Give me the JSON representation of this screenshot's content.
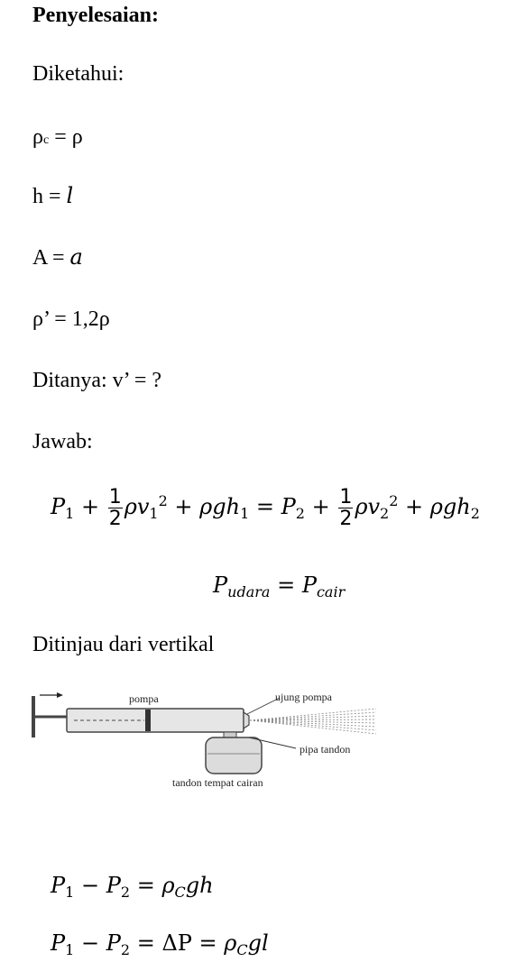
{
  "heading": "Penyelesaian:",
  "known_label": "Diketahui:",
  "given": {
    "rho_c_lhs": "ρ",
    "rho_c_sub": "c",
    "rho_c_rhs": " = ρ",
    "h_lhs": "h = ",
    "h_rhs": "l",
    "A_lhs": "A = ",
    "A_rhs": "a",
    "rho_prime": "ρ’ = 1,2ρ"
  },
  "asked": "Ditanya: v’ = ?",
  "answer_label": "Jawab:",
  "bernoulli": {
    "P": "P",
    "sub1": "1",
    "sub2": "2",
    "plus": " + ",
    "frac_num": "1",
    "frac_den": "2",
    "rho_v": "ρv",
    "sq": "2",
    "rho_g_h": "ρgh",
    "equals": " = "
  },
  "pressure_eq": {
    "P": "P",
    "sub_left": "udara",
    "equals": " = ",
    "sub_right": "cair"
  },
  "vertical_label": "Ditinjau dari vertikal",
  "diagram": {
    "label_pompa": "pompa",
    "label_ujung": "ujung pompa",
    "label_pipa": "pipa tandon",
    "label_tandon": "tandon tempat cairan"
  },
  "eq1": {
    "lhs": "P",
    "s1": "1",
    "minus": " − ",
    "s2": "2",
    "eq": " = ",
    "rho": "ρ",
    "subC": "C",
    "gh": "gh"
  },
  "eq2": {
    "lhs": "P",
    "s1": "1",
    "minus": " − ",
    "s2": "2",
    "eq": " = ",
    "delta": "ΔP",
    "eq2": " = ",
    "rho": "ρ",
    "subC": "C",
    "gl": "gl"
  }
}
